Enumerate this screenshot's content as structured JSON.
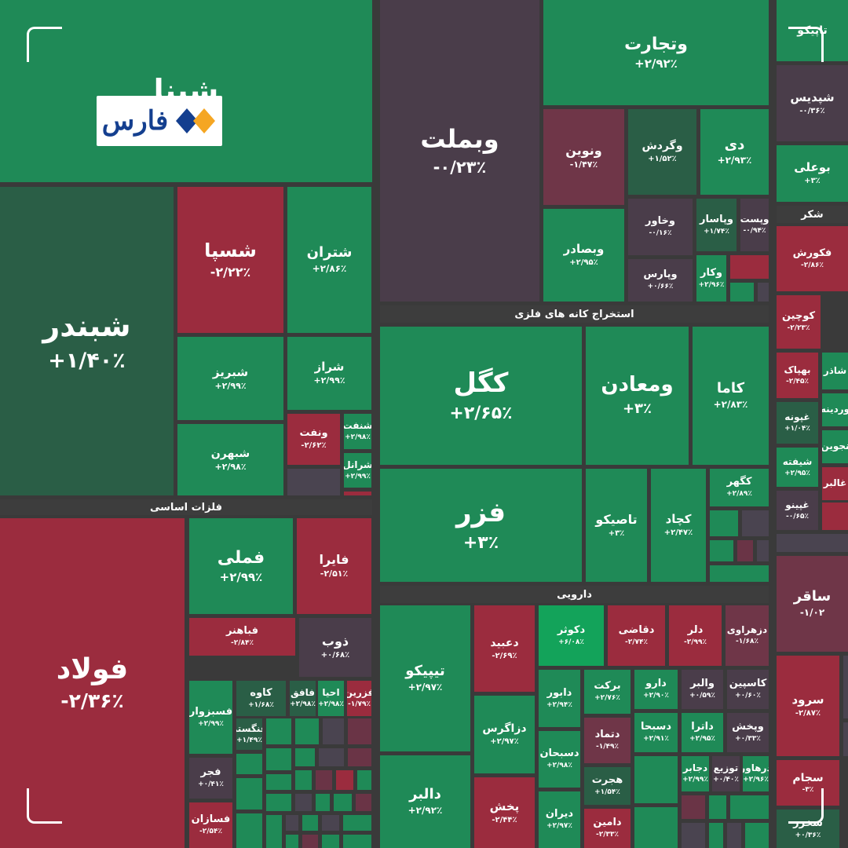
{
  "chart_data": {
    "type": "heatmap",
    "subtype": "treemap",
    "colors": {
      "positive": "#1f8a57",
      "positive_dim": "#2a5e46",
      "negative": "#9b2c3e",
      "negative_dim": "#6f3648",
      "neutral": "#4a3d4a",
      "bright": "#13a35a",
      "filler_green": "#1f8a57",
      "filler_red": "#6a3446",
      "filler_gray": "#4a4450"
    },
    "sectors": [
      "فلزات اساسی",
      "استخراج کانه های فلزی",
      "دارویی",
      "شکر"
    ],
    "tiles": [
      {
        "name": "شپنا",
        "change": "",
        "value": null
      },
      {
        "name": "شبندر",
        "change": "+۱/۴۰٪",
        "value": 1.4
      },
      {
        "name": "شسپا",
        "change": "-۲/۲۲٪",
        "value": -2.22
      },
      {
        "name": "شتران",
        "change": "+۲/۸۶٪",
        "value": 2.86
      },
      {
        "name": "شبریز",
        "change": "+۲/۹۹٪",
        "value": 2.99
      },
      {
        "name": "شراز",
        "change": "+۲/۹۹٪",
        "value": 2.99
      },
      {
        "name": "شبهرن",
        "change": "+۲/۹۸٪",
        "value": 2.98
      },
      {
        "name": "ونفت",
        "change": "-۲/۶۲٪",
        "value": -2.62
      },
      {
        "name": "شنفت",
        "change": "+۲/۹۸٪",
        "value": 2.98
      },
      {
        "name": "شرانل",
        "change": "+۲/۹۹٪",
        "value": 2.99
      },
      {
        "name": "وبملت",
        "change": "-۰/۲۳٪",
        "value": -0.23
      },
      {
        "name": "وتجارت",
        "change": "+۲/۹۲٪",
        "value": 2.92
      },
      {
        "name": "ونوین",
        "change": "-۱/۴۷٪",
        "value": -1.47
      },
      {
        "name": "وگردش",
        "change": "+۱/۵۲٪",
        "value": 1.52
      },
      {
        "name": "دی",
        "change": "+۲/۹۳٪",
        "value": 2.93
      },
      {
        "name": "وبصادر",
        "change": "+۲/۹۵٪",
        "value": 2.95
      },
      {
        "name": "وخاور",
        "change": "-۰/۱۶٪",
        "value": -0.16
      },
      {
        "name": "وپاسار",
        "change": "+۱/۷۴٪",
        "value": 1.74
      },
      {
        "name": "وپست",
        "change": "-۰/۹۴٪",
        "value": -0.94
      },
      {
        "name": "وپارس",
        "change": "+۰/۶۶٪",
        "value": 0.66
      },
      {
        "name": "وکار",
        "change": "+۲/۹۶٪",
        "value": 2.96
      },
      {
        "name": "تاپیکو",
        "change": "",
        "value": null
      },
      {
        "name": "شپدیس",
        "change": "-۰/۳۶٪",
        "value": -0.36
      },
      {
        "name": "بوعلی",
        "change": "+۳٪",
        "value": 3
      },
      {
        "name": "فکورش",
        "change": "-۲/۸۶٪",
        "value": -2.86
      },
      {
        "name": "کوچین",
        "change": "-۲/۲۳٪",
        "value": -2.23
      },
      {
        "name": "بهپاک",
        "change": "-۲/۴۵٪",
        "value": -2.45
      },
      {
        "name": "غپونه",
        "change": "+۱/۰۴٪",
        "value": 1.04
      },
      {
        "name": "شیفته",
        "change": "+۲/۹۵٪",
        "value": 2.95
      },
      {
        "name": "غپینو",
        "change": "-۰/۶۵٪",
        "value": -0.65
      },
      {
        "name": "شاذر",
        "change": "",
        "value": null
      },
      {
        "name": "وردینه",
        "change": "",
        "value": null
      },
      {
        "name": "نجوین",
        "change": "",
        "value": null
      },
      {
        "name": "غالبر",
        "change": "",
        "value": null
      },
      {
        "name": "کگل",
        "change": "+۲/۶۵٪",
        "value": 2.65
      },
      {
        "name": "ومعادن",
        "change": "+۳٪",
        "value": 3
      },
      {
        "name": "کاما",
        "change": "+۲/۸۳٪",
        "value": 2.83
      },
      {
        "name": "فزر",
        "change": "+۳٪",
        "value": 3
      },
      {
        "name": "تاصیکو",
        "change": "+۳٪",
        "value": 3
      },
      {
        "name": "کچاد",
        "change": "+۲/۴۷٪",
        "value": 2.47
      },
      {
        "name": "کگهر",
        "change": "+۲/۸۹٪",
        "value": 2.89
      },
      {
        "name": "فولاد",
        "change": "-۲/۳۶٪",
        "value": -2.36
      },
      {
        "name": "فملی",
        "change": "+۲/۹۹٪",
        "value": 2.99
      },
      {
        "name": "فایرا",
        "change": "-۲/۵۱٪",
        "value": -2.51
      },
      {
        "name": "فباهنر",
        "change": "-۲/۸۴٪",
        "value": -2.84
      },
      {
        "name": "ذوب",
        "change": "+۰/۶۸٪",
        "value": 0.68
      },
      {
        "name": "فسبزوار",
        "change": "+۲/۹۹٪",
        "value": 2.99
      },
      {
        "name": "کاوه",
        "change": "+۱/۶۸٪",
        "value": 1.68
      },
      {
        "name": "فافق",
        "change": "+۲/۹۸٪",
        "value": 2.98
      },
      {
        "name": "احیا",
        "change": "+۲/۹۸٪",
        "value": 2.98
      },
      {
        "name": "فزرین",
        "change": "-۱/۷۹٪",
        "value": -1.79
      },
      {
        "name": "فنگستر",
        "change": "+۱/۴۹٪",
        "value": 1.49
      },
      {
        "name": "فجر",
        "change": "+۰/۴۱٪",
        "value": 0.41
      },
      {
        "name": "فسازان",
        "change": "-۲/۵۴٪",
        "value": -2.54
      },
      {
        "name": "تیپیکو",
        "change": "+۲/۹۷٪",
        "value": 2.97
      },
      {
        "name": "دالبر",
        "change": "+۲/۹۲٪",
        "value": 2.92
      },
      {
        "name": "دعبید",
        "change": "-۲/۶۹٪",
        "value": -2.69
      },
      {
        "name": "دزاگرس",
        "change": "+۲/۹۷٪",
        "value": 2.97
      },
      {
        "name": "پخش",
        "change": "-۲/۴۴٪",
        "value": -2.44
      },
      {
        "name": "دکوثر",
        "change": "+۶/۰۸٪",
        "value": 6.08
      },
      {
        "name": "دقاضی",
        "change": "-۲/۷۴٪",
        "value": -2.74
      },
      {
        "name": "دلر",
        "change": "-۲/۹۹٪",
        "value": -2.99
      },
      {
        "name": "دزهراوی",
        "change": "-۱/۶۸٪",
        "value": -1.68
      },
      {
        "name": "دابور",
        "change": "+۲/۹۴٪",
        "value": 2.94
      },
      {
        "name": "برکت",
        "change": "+۲/۷۶٪",
        "value": 2.76
      },
      {
        "name": "دارو",
        "change": "+۲/۹۰٪",
        "value": 2.9
      },
      {
        "name": "والبر",
        "change": "+۰/۵۹٪",
        "value": 0.59
      },
      {
        "name": "کاسپین",
        "change": "+۰/۶۰٪",
        "value": 0.6
      },
      {
        "name": "دسبحان",
        "change": "+۲/۹۸٪",
        "value": 2.98
      },
      {
        "name": "دتماد",
        "change": "-۱/۴۹٪",
        "value": -1.49
      },
      {
        "name": "دسبحا",
        "change": "+۲/۹۱٪",
        "value": 2.91
      },
      {
        "name": "داترا",
        "change": "+۲/۹۵٪",
        "value": 2.95
      },
      {
        "name": "وپخش",
        "change": "+۰/۳۳٪",
        "value": 0.33
      },
      {
        "name": "هجرت",
        "change": "+۱/۵۴٪",
        "value": 1.54
      },
      {
        "name": "دجابر",
        "change": "+۲/۹۹٪",
        "value": 2.99
      },
      {
        "name": "توزیع",
        "change": "+۰/۴۰٪",
        "value": 0.4
      },
      {
        "name": "درهاور",
        "change": "+۲/۹۶٪",
        "value": 2.96
      },
      {
        "name": "دیران",
        "change": "+۲/۹۷٪",
        "value": 2.97
      },
      {
        "name": "دامین",
        "change": "-۲/۳۳٪",
        "value": -2.33
      },
      {
        "name": "ساقر",
        "change": "-۱/۰۲",
        "value": -1.02
      },
      {
        "name": "سرود",
        "change": "-۲/۸۷٪",
        "value": -2.87
      },
      {
        "name": "سجام",
        "change": "-۳٪",
        "value": -3
      },
      {
        "name": "سخزر",
        "change": "+۰/۳۶٪",
        "value": 0.36
      }
    ]
  },
  "logo": {
    "text": "فارس",
    "colors": {
      "diamond_left": "#143f8f",
      "diamond_right": "#f5a623"
    }
  }
}
